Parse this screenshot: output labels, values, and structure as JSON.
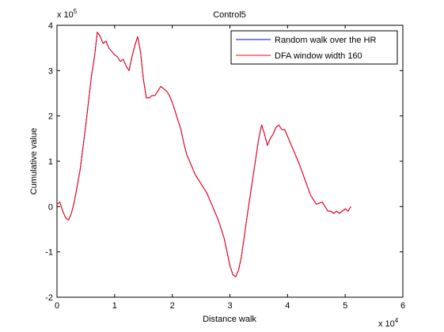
{
  "chart_data": {
    "type": "line",
    "title": "Control5",
    "xlabel": "Distance walk",
    "ylabel": "Cumulative value",
    "x_multiplier": "x 10",
    "x_multiplier_exp": "4",
    "y_multiplier": "x 10",
    "y_multiplier_exp": "5",
    "xlim": [
      0,
      6
    ],
    "ylim": [
      -2,
      4
    ],
    "xticks": [
      "0",
      "1",
      "2",
      "3",
      "4",
      "5",
      "6"
    ],
    "yticks": [
      "-2",
      "-1",
      "0",
      "1",
      "2",
      "3",
      "4"
    ],
    "grid": false,
    "legend_position": "top-right",
    "series": [
      {
        "name": "Random walk over the HR",
        "color": "#0000ff",
        "x": [
          0,
          0.05,
          0.1,
          0.15,
          0.2,
          0.25,
          0.3,
          0.4,
          0.5,
          0.6,
          0.65,
          0.7,
          0.75,
          0.8,
          0.85,
          0.9,
          1.0,
          1.05,
          1.1,
          1.15,
          1.2,
          1.25,
          1.3,
          1.35,
          1.4,
          1.45,
          1.5,
          1.55,
          1.6,
          1.65,
          1.7,
          1.75,
          1.8,
          1.85,
          1.9,
          1.95,
          2.0,
          2.05,
          2.1,
          2.15,
          2.2,
          2.25,
          2.3,
          2.35,
          2.4,
          2.5,
          2.6,
          2.7,
          2.8,
          2.9,
          3.0,
          3.05,
          3.1,
          3.15,
          3.2,
          3.3,
          3.4,
          3.5,
          3.55,
          3.6,
          3.65,
          3.7,
          3.75,
          3.8,
          3.85,
          3.9,
          3.95,
          4.0,
          4.1,
          4.2,
          4.3,
          4.4,
          4.5,
          4.6,
          4.7,
          4.75,
          4.8,
          4.85,
          4.9,
          5.0,
          5.05,
          5.1
        ],
        "y": [
          0.05,
          0.1,
          -0.1,
          -0.25,
          -0.3,
          -0.15,
          0.1,
          0.8,
          1.8,
          2.9,
          3.3,
          3.85,
          3.75,
          3.6,
          3.65,
          3.5,
          3.35,
          3.3,
          3.2,
          3.25,
          3.1,
          3.0,
          3.3,
          3.55,
          3.75,
          3.4,
          2.8,
          2.4,
          2.4,
          2.45,
          2.45,
          2.55,
          2.65,
          2.6,
          2.55,
          2.45,
          2.3,
          2.1,
          1.9,
          1.7,
          1.4,
          1.15,
          1.0,
          0.85,
          0.7,
          0.5,
          0.3,
          0.0,
          -0.3,
          -0.7,
          -1.3,
          -1.5,
          -1.55,
          -1.4,
          -1.1,
          -0.2,
          0.65,
          1.5,
          1.8,
          1.6,
          1.35,
          1.5,
          1.6,
          1.75,
          1.8,
          1.7,
          1.7,
          1.55,
          1.25,
          0.95,
          0.6,
          0.25,
          0.05,
          0.1,
          -0.1,
          -0.1,
          -0.15,
          -0.1,
          -0.15,
          -0.05,
          -0.1,
          -0.0
        ]
      },
      {
        "name": "DFA window width 160",
        "color": "#ff0000",
        "x": [
          0,
          0.05,
          0.1,
          0.15,
          0.2,
          0.25,
          0.3,
          0.4,
          0.5,
          0.6,
          0.65,
          0.7,
          0.75,
          0.8,
          0.85,
          0.9,
          1.0,
          1.05,
          1.1,
          1.15,
          1.2,
          1.25,
          1.3,
          1.35,
          1.4,
          1.45,
          1.5,
          1.55,
          1.6,
          1.65,
          1.7,
          1.75,
          1.8,
          1.85,
          1.9,
          1.95,
          2.0,
          2.05,
          2.1,
          2.15,
          2.2,
          2.25,
          2.3,
          2.35,
          2.4,
          2.5,
          2.6,
          2.7,
          2.8,
          2.9,
          3.0,
          3.05,
          3.1,
          3.15,
          3.2,
          3.3,
          3.4,
          3.5,
          3.55,
          3.6,
          3.65,
          3.7,
          3.75,
          3.8,
          3.85,
          3.9,
          3.95,
          4.0,
          4.1,
          4.2,
          4.3,
          4.4,
          4.5,
          4.6,
          4.7,
          4.75,
          4.8,
          4.85,
          4.9,
          5.0,
          5.05,
          5.1
        ],
        "y": [
          0.05,
          0.1,
          -0.1,
          -0.25,
          -0.3,
          -0.15,
          0.1,
          0.8,
          1.8,
          2.9,
          3.3,
          3.85,
          3.75,
          3.6,
          3.65,
          3.5,
          3.35,
          3.3,
          3.2,
          3.25,
          3.1,
          3.0,
          3.3,
          3.55,
          3.75,
          3.4,
          2.8,
          2.4,
          2.4,
          2.45,
          2.45,
          2.55,
          2.65,
          2.6,
          2.55,
          2.45,
          2.3,
          2.1,
          1.9,
          1.7,
          1.4,
          1.15,
          1.0,
          0.85,
          0.7,
          0.5,
          0.3,
          0.0,
          -0.3,
          -0.7,
          -1.3,
          -1.5,
          -1.55,
          -1.4,
          -1.1,
          -0.2,
          0.65,
          1.5,
          1.8,
          1.6,
          1.35,
          1.5,
          1.6,
          1.75,
          1.8,
          1.7,
          1.7,
          1.55,
          1.25,
          0.95,
          0.6,
          0.25,
          0.05,
          0.1,
          -0.1,
          -0.1,
          -0.15,
          -0.1,
          -0.15,
          -0.05,
          -0.1,
          -0.0
        ]
      }
    ]
  }
}
